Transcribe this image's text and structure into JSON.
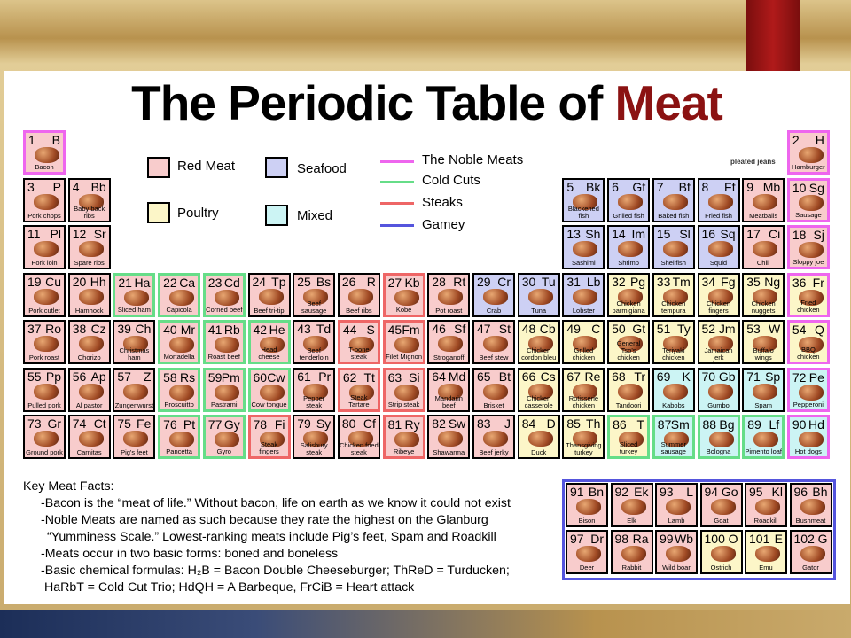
{
  "title": {
    "part1": "The Periodic Table of ",
    "part2": "Meat"
  },
  "logo_text": "pleated jeans",
  "legend": {
    "red_meat": "Red Meat",
    "poultry": "Poultry",
    "seafood": "Seafood",
    "mixed": "Mixed",
    "noble": "The Noble Meats",
    "cold_cuts": "Cold Cuts",
    "steaks": "Steaks",
    "gamey": "Gamey"
  },
  "colors": {
    "red_meat": "#f8cccc",
    "poultry": "#fcf6c8",
    "seafood": "#cdd0f4",
    "mixed": "#ccf4f4",
    "noble": "#ee66ee",
    "cold_cuts": "#66dd88",
    "steaks": "#ee6666",
    "gamey": "#5555dd",
    "title_accent": "#8b1212"
  },
  "facts": {
    "heading": "Key Meat Facts:",
    "lines": [
      "-Bacon is the “meat of life.” Without bacon, life on earth as we know it could not exist",
      "-Noble Meats are named as such because they rate the highest on the Glanburg",
      "“Yumminess Scale.” Lowest-ranking meats include Pig’s feet, Spam and Roadkill",
      "-Meats occur in two basic forms: boned and boneless",
      "-Basic chemical formulas: H₂B = Bacon Double Cheeseburger; ThReD = Turducken;",
      "HaRbT = Cold Cut Trio; HdQH = A Barbeque, FrCiB = Heart attack"
    ]
  },
  "elements": [
    {
      "n": "1",
      "s": "B",
      "name": "Bacon",
      "t": "red",
      "g": "noble"
    },
    {
      "n": "2",
      "s": "H",
      "name": "Hamburger",
      "t": "red",
      "g": "noble"
    },
    {
      "n": "3",
      "s": "P",
      "name": "Pork chops",
      "t": "red"
    },
    {
      "n": "4",
      "s": "Bb",
      "name": "Baby back ribs",
      "t": "red"
    },
    {
      "n": "5",
      "s": "Bk",
      "name": "Blackened fish",
      "t": "seafood"
    },
    {
      "n": "6",
      "s": "Gf",
      "name": "Grilled fish",
      "t": "seafood"
    },
    {
      "n": "7",
      "s": "Bf",
      "name": "Baked fish",
      "t": "seafood"
    },
    {
      "n": "8",
      "s": "Ff",
      "name": "Fried fish",
      "t": "seafood"
    },
    {
      "n": "9",
      "s": "Mb",
      "name": "Meatballs",
      "t": "red"
    },
    {
      "n": "10",
      "s": "Sg",
      "name": "Sausage",
      "t": "red",
      "g": "noble"
    },
    {
      "n": "11",
      "s": "Pl",
      "name": "Pork loin",
      "t": "red"
    },
    {
      "n": "12",
      "s": "Sr",
      "name": "Spare ribs",
      "t": "red"
    },
    {
      "n": "13",
      "s": "Sh",
      "name": "Sashimi",
      "t": "seafood"
    },
    {
      "n": "14",
      "s": "Im",
      "name": "Shrimp",
      "t": "seafood"
    },
    {
      "n": "15",
      "s": "Sl",
      "name": "Shellfish",
      "t": "seafood"
    },
    {
      "n": "16",
      "s": "Sq",
      "name": "Squid",
      "t": "seafood"
    },
    {
      "n": "17",
      "s": "Ci",
      "name": "Chili",
      "t": "red"
    },
    {
      "n": "18",
      "s": "Sj",
      "name": "Sloppy joe",
      "t": "red",
      "g": "noble"
    },
    {
      "n": "19",
      "s": "Cu",
      "name": "Pork cutlet",
      "t": "red"
    },
    {
      "n": "20",
      "s": "Hh",
      "name": "Hamhock",
      "t": "red"
    },
    {
      "n": "21",
      "s": "Ha",
      "name": "Sliced ham",
      "t": "red",
      "g": "cold"
    },
    {
      "n": "22",
      "s": "Ca",
      "name": "Capicola",
      "t": "red",
      "g": "cold"
    },
    {
      "n": "23",
      "s": "Cd",
      "name": "Corned beef",
      "t": "red",
      "g": "cold"
    },
    {
      "n": "24",
      "s": "Tp",
      "name": "Beef tri-tip",
      "t": "red"
    },
    {
      "n": "25",
      "s": "Bs",
      "name": "Beef sausage",
      "t": "red"
    },
    {
      "n": "26",
      "s": "R",
      "name": "Beef ribs",
      "t": "red"
    },
    {
      "n": "27",
      "s": "Kb",
      "name": "Kobe",
      "t": "red",
      "g": "steak"
    },
    {
      "n": "28",
      "s": "Rt",
      "name": "Pot roast",
      "t": "red"
    },
    {
      "n": "29",
      "s": "Cr",
      "name": "Crab",
      "t": "seafood"
    },
    {
      "n": "30",
      "s": "Tu",
      "name": "Tuna",
      "t": "seafood"
    },
    {
      "n": "31",
      "s": "Lb",
      "name": "Lobster",
      "t": "seafood"
    },
    {
      "n": "32",
      "s": "Pg",
      "name": "Chicken parmigiana",
      "t": "poultry"
    },
    {
      "n": "33",
      "s": "Tm",
      "name": "Chicken tempura",
      "t": "poultry"
    },
    {
      "n": "34",
      "s": "Fg",
      "name": "Chicken fingers",
      "t": "poultry"
    },
    {
      "n": "35",
      "s": "Ng",
      "name": "Chicken nuggets",
      "t": "poultry"
    },
    {
      "n": "36",
      "s": "Fr",
      "name": "Fried chicken",
      "t": "poultry",
      "g": "noble"
    },
    {
      "n": "37",
      "s": "Ro",
      "name": "Pork roast",
      "t": "red"
    },
    {
      "n": "38",
      "s": "Cz",
      "name": "Chorizo",
      "t": "red"
    },
    {
      "n": "39",
      "s": "Ch",
      "name": "Christmas ham",
      "t": "red"
    },
    {
      "n": "40",
      "s": "Mr",
      "name": "Mortadella",
      "t": "red",
      "g": "cold"
    },
    {
      "n": "41",
      "s": "Rb",
      "name": "Roast beef",
      "t": "red",
      "g": "cold"
    },
    {
      "n": "42",
      "s": "He",
      "name": "Head cheese",
      "t": "red",
      "g": "cold"
    },
    {
      "n": "43",
      "s": "Td",
      "name": "Beef tenderloin",
      "t": "red"
    },
    {
      "n": "44",
      "s": "S",
      "name": "T-bone steak",
      "t": "red",
      "g": "steak"
    },
    {
      "n": "45",
      "s": "Fm",
      "name": "Filet Mignon",
      "t": "red",
      "g": "steak"
    },
    {
      "n": "46",
      "s": "Sf",
      "name": "Stroganoff",
      "t": "red"
    },
    {
      "n": "47",
      "s": "St",
      "name": "Beef stew",
      "t": "red"
    },
    {
      "n": "48",
      "s": "Cb",
      "name": "Chicken cordon bleu",
      "t": "poultry"
    },
    {
      "n": "49",
      "s": "C",
      "name": "Grilled chicken",
      "t": "poultry"
    },
    {
      "n": "50",
      "s": "Gt",
      "name": "General Tso's chicken",
      "t": "poultry"
    },
    {
      "n": "51",
      "s": "Ty",
      "name": "Teriyaki chicken",
      "t": "poultry"
    },
    {
      "n": "52",
      "s": "Jm",
      "name": "Jamaican jerk",
      "t": "poultry"
    },
    {
      "n": "53",
      "s": "W",
      "name": "Buffalo wings",
      "t": "poultry"
    },
    {
      "n": "54",
      "s": "Q",
      "name": "BBQ chicken",
      "t": "poultry",
      "g": "noble"
    },
    {
      "n": "55",
      "s": "Pp",
      "name": "Pulled pork",
      "t": "red"
    },
    {
      "n": "56",
      "s": "Ap",
      "name": "Al pastor",
      "t": "red"
    },
    {
      "n": "57",
      "s": "Z",
      "name": "Zungenwurst",
      "t": "red"
    },
    {
      "n": "58",
      "s": "Rs",
      "name": "Proscuitto",
      "t": "red",
      "g": "cold"
    },
    {
      "n": "59",
      "s": "Pm",
      "name": "Pastrami",
      "t": "red",
      "g": "cold"
    },
    {
      "n": "60",
      "s": "Cw",
      "name": "Cow tongue",
      "t": "red",
      "g": "cold"
    },
    {
      "n": "61",
      "s": "Pr",
      "name": "Pepper steak",
      "t": "red"
    },
    {
      "n": "62",
      "s": "Tt",
      "name": "Steak Tartare",
      "t": "red",
      "g": "steak"
    },
    {
      "n": "63",
      "s": "Si",
      "name": "Strip steak",
      "t": "red",
      "g": "steak"
    },
    {
      "n": "64",
      "s": "Md",
      "name": "Mandarin beef",
      "t": "red"
    },
    {
      "n": "65",
      "s": "Bt",
      "name": "Brisket",
      "t": "red"
    },
    {
      "n": "66",
      "s": "Cs",
      "name": "Chicken casserole",
      "t": "poultry"
    },
    {
      "n": "67",
      "s": "Re",
      "name": "Rotisserie chicken",
      "t": "poultry"
    },
    {
      "n": "68",
      "s": "Tr",
      "name": "Tandoori",
      "t": "poultry"
    },
    {
      "n": "69",
      "s": "K",
      "name": "Kabobs",
      "t": "mixed"
    },
    {
      "n": "70",
      "s": "Gb",
      "name": "Gumbo",
      "t": "mixed"
    },
    {
      "n": "71",
      "s": "Sp",
      "name": "Spam",
      "t": "mixed"
    },
    {
      "n": "72",
      "s": "Pe",
      "name": "Pepperoni",
      "t": "mixed",
      "g": "noble"
    },
    {
      "n": "73",
      "s": "Gr",
      "name": "Ground pork",
      "t": "red"
    },
    {
      "n": "74",
      "s": "Ct",
      "name": "Carnitas",
      "t": "red"
    },
    {
      "n": "75",
      "s": "Fe",
      "name": "Pig's feet",
      "t": "red"
    },
    {
      "n": "76",
      "s": "Pt",
      "name": "Pancetta",
      "t": "red",
      "g": "cold"
    },
    {
      "n": "77",
      "s": "Gy",
      "name": "Gyro",
      "t": "red",
      "g": "cold"
    },
    {
      "n": "78",
      "s": "Fi",
      "name": "Steak fingers",
      "t": "red",
      "g": "steak"
    },
    {
      "n": "79",
      "s": "Sy",
      "name": "Salisbury steak",
      "t": "red"
    },
    {
      "n": "80",
      "s": "Cf",
      "name": "Chicken fried steak",
      "t": "red"
    },
    {
      "n": "81",
      "s": "Ry",
      "name": "Ribeye",
      "t": "red",
      "g": "steak"
    },
    {
      "n": "82",
      "s": "Sw",
      "name": "Shawarma",
      "t": "red"
    },
    {
      "n": "83",
      "s": "J",
      "name": "Beef jerky",
      "t": "red"
    },
    {
      "n": "84",
      "s": "D",
      "name": "Duck",
      "t": "poultry"
    },
    {
      "n": "85",
      "s": "Th",
      "name": "Thansgiving turkey",
      "t": "poultry"
    },
    {
      "n": "86",
      "s": "T",
      "name": "Sliced turkey",
      "t": "poultry",
      "g": "cold"
    },
    {
      "n": "87",
      "s": "Sm",
      "name": "Summer sausage",
      "t": "mixed",
      "g": "cold"
    },
    {
      "n": "88",
      "s": "Bg",
      "name": "Bologna",
      "t": "mixed",
      "g": "cold"
    },
    {
      "n": "89",
      "s": "Lf",
      "name": "Pimento loaf",
      "t": "mixed",
      "g": "cold"
    },
    {
      "n": "90",
      "s": "Hd",
      "name": "Hot dogs",
      "t": "mixed",
      "g": "noble"
    },
    {
      "n": "91",
      "s": "Bn",
      "name": "Bison",
      "t": "red"
    },
    {
      "n": "92",
      "s": "Ek",
      "name": "Elk",
      "t": "red"
    },
    {
      "n": "93",
      "s": "L",
      "name": "Lamb",
      "t": "red"
    },
    {
      "n": "94",
      "s": "Go",
      "name": "Goat",
      "t": "red"
    },
    {
      "n": "95",
      "s": "Kl",
      "name": "Roadkill",
      "t": "red"
    },
    {
      "n": "96",
      "s": "Bh",
      "name": "Bushmeat",
      "t": "red"
    },
    {
      "n": "97",
      "s": "Dr",
      "name": "Deer",
      "t": "red"
    },
    {
      "n": "98",
      "s": "Ra",
      "name": "Rabbit",
      "t": "red"
    },
    {
      "n": "99",
      "s": "Wb",
      "name": "Wild boar",
      "t": "red"
    },
    {
      "n": "100",
      "s": "O",
      "name": "Ostrich",
      "t": "poultry"
    },
    {
      "n": "101",
      "s": "E",
      "name": "Emu",
      "t": "poultry"
    },
    {
      "n": "102",
      "s": "G",
      "name": "Gator",
      "t": "red"
    }
  ]
}
